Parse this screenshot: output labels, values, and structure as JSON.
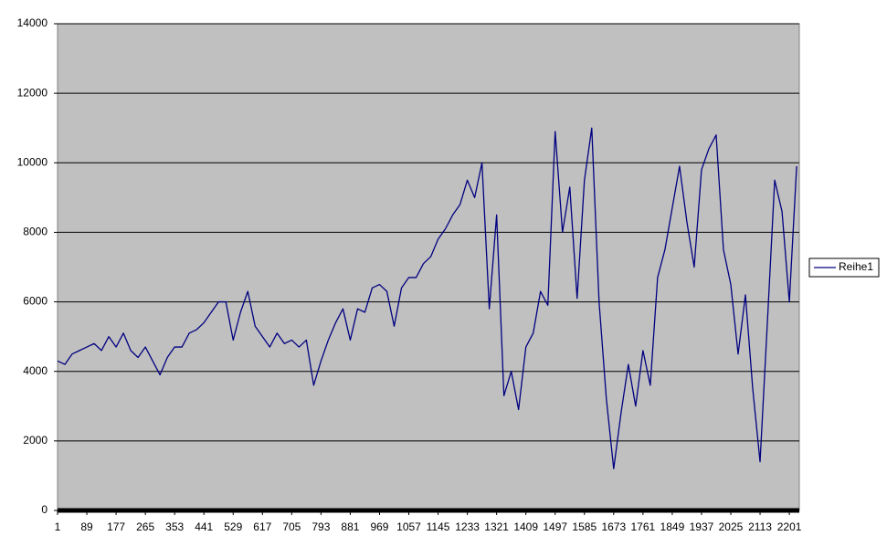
{
  "chart_data": {
    "type": "line",
    "x": [
      1,
      23,
      45,
      67,
      89,
      111,
      133,
      155,
      177,
      199,
      221,
      243,
      265,
      287,
      309,
      331,
      353,
      375,
      397,
      419,
      441,
      463,
      485,
      507,
      529,
      551,
      573,
      595,
      617,
      639,
      661,
      683,
      705,
      727,
      749,
      771,
      793,
      815,
      837,
      859,
      881,
      903,
      925,
      947,
      969,
      991,
      1013,
      1035,
      1057,
      1079,
      1101,
      1123,
      1145,
      1167,
      1189,
      1211,
      1233,
      1255,
      1277,
      1299,
      1321,
      1343,
      1365,
      1387,
      1409,
      1431,
      1453,
      1475,
      1497,
      1519,
      1541,
      1563,
      1585,
      1607,
      1629,
      1651,
      1673,
      1695,
      1717,
      1739,
      1761,
      1783,
      1805,
      1827,
      1849,
      1871,
      1893,
      1915,
      1937,
      1959,
      1981,
      2003,
      2025,
      2047,
      2069,
      2091,
      2113,
      2135,
      2157,
      2179,
      2201,
      2223
    ],
    "series": [
      {
        "name": "Reihe1",
        "color": "#000080",
        "values": [
          4300,
          4200,
          4500,
          4600,
          4700,
          4800,
          4600,
          5000,
          4700,
          5100,
          4600,
          4400,
          4700,
          4300,
          3900,
          4400,
          4700,
          4700,
          5100,
          5200,
          5400,
          5700,
          6000,
          6000,
          4900,
          5700,
          6300,
          5300,
          5000,
          4700,
          5100,
          4800,
          4900,
          4700,
          4900,
          3600,
          4300,
          4900,
          5400,
          5800,
          4900,
          5800,
          5700,
          6400,
          6500,
          6300,
          5300,
          6400,
          6700,
          6700,
          7100,
          7300,
          7800,
          8100,
          8500,
          8800,
          9500,
          9000,
          10000,
          5800,
          8500,
          3300,
          4000,
          2900,
          4700,
          5100,
          6300,
          5900,
          10900,
          8000,
          9300,
          6100,
          9500,
          11000,
          6000,
          3200,
          1200,
          2800,
          4200,
          3000,
          4600,
          3600,
          6700,
          7500,
          8700,
          9900,
          8300,
          7000,
          9800,
          10400,
          10800,
          7500,
          6500,
          4500,
          6200,
          3500,
          1400,
          5400,
          9500,
          8600,
          6000,
          9900
        ]
      }
    ],
    "xlim": [
      1,
      2231
    ],
    "xticks": [
      1,
      89,
      177,
      265,
      353,
      441,
      529,
      617,
      705,
      793,
      881,
      969,
      1057,
      1145,
      1233,
      1321,
      1409,
      1497,
      1585,
      1673,
      1761,
      1849,
      1937,
      2025,
      2113,
      2201
    ],
    "ylim": [
      0,
      14000
    ],
    "yticks": [
      0,
      2000,
      4000,
      6000,
      8000,
      10000,
      12000,
      14000
    ],
    "grid": true,
    "legend": "right"
  }
}
